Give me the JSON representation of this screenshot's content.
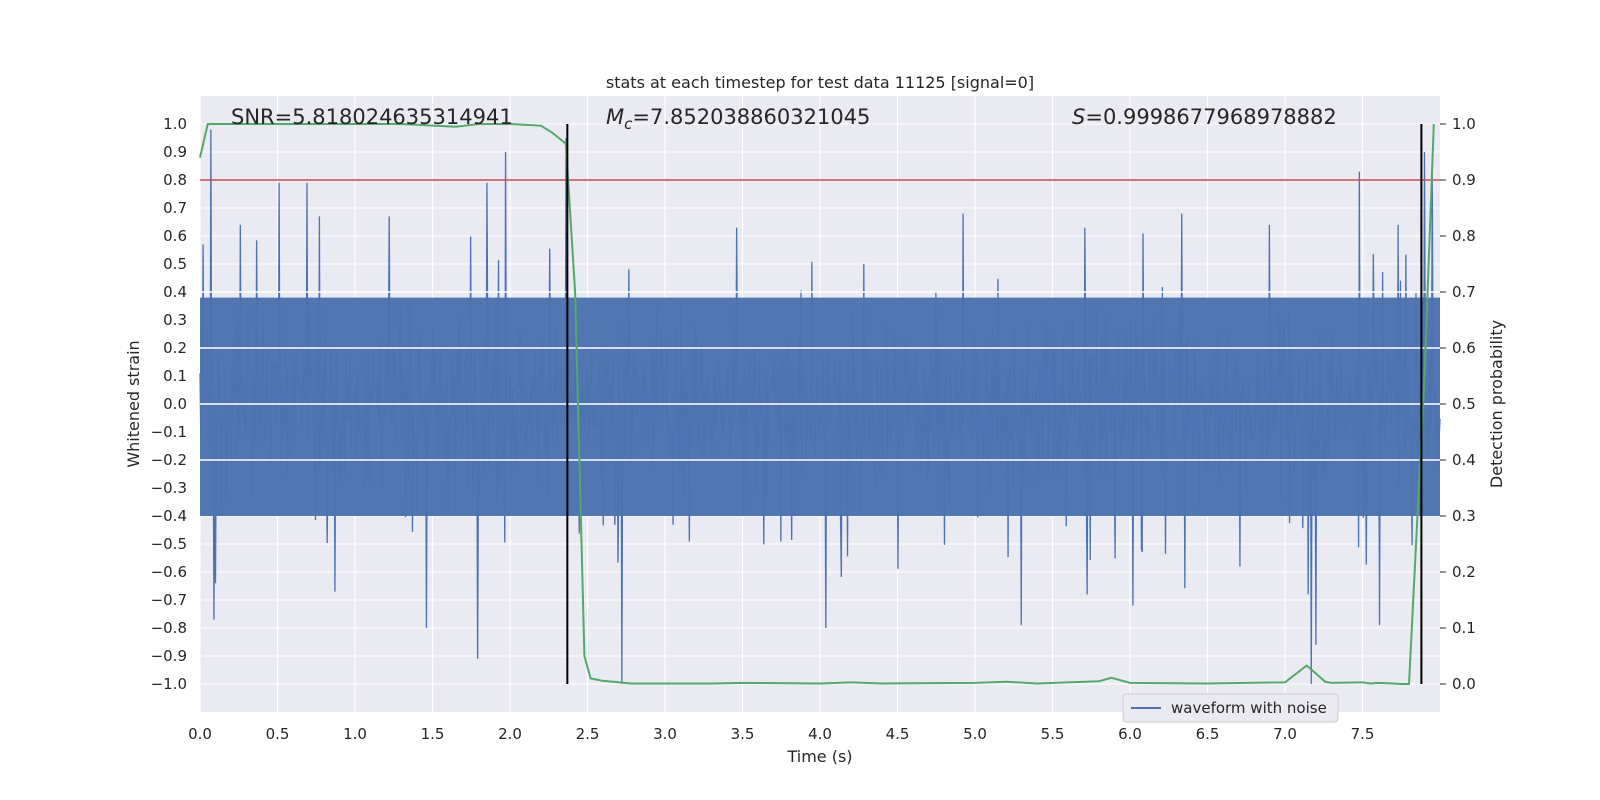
{
  "chart_data": {
    "type": "line",
    "title": "stats at each timestep for test data 11125 [signal=0]",
    "xlabel": "Time (s)",
    "ylabel": "Whitened strain",
    "y2label": "Detection probability",
    "xlim": [
      0.0,
      8.0
    ],
    "ylim": [
      -1.1,
      1.1
    ],
    "y2lim": [
      -0.05,
      1.05
    ],
    "xticks": [
      "0.0",
      "0.5",
      "1.0",
      "1.5",
      "2.0",
      "2.5",
      "3.0",
      "3.5",
      "4.0",
      "4.5",
      "5.0",
      "5.5",
      "6.0",
      "6.5",
      "7.0",
      "7.5"
    ],
    "yticks": [
      "1.0",
      "0.9",
      "0.8",
      "0.7",
      "0.6",
      "0.5",
      "0.4",
      "0.3",
      "0.2",
      "0.1",
      "0.0",
      "−0.1",
      "−0.2",
      "−0.3",
      "−0.4",
      "−0.5",
      "−0.6",
      "−0.7",
      "−0.8",
      "−0.9",
      "−1.0"
    ],
    "y2ticks": [
      "0.0",
      "0.1",
      "0.2",
      "0.3",
      "0.4",
      "0.5",
      "0.6",
      "0.7",
      "0.8",
      "0.9",
      "1.0"
    ],
    "grid": true,
    "annotations": {
      "snr": "SNR=5.818024635314941",
      "mc_symbol": "M",
      "mc_sub": "c",
      "mc_value": "=7.852038860321045",
      "s_symbol": "S",
      "s_value": "=0.9998677968978882"
    },
    "legend": {
      "label": "waveform with noise",
      "placement": "lower-right"
    },
    "threshold": {
      "value": 0.9,
      "axis": "right",
      "color": "#c44e52"
    },
    "vlines": [
      2.37,
      7.88
    ],
    "strain": {
      "name": "waveform with noise",
      "color": "#4c72b0",
      "x_start": 0.0,
      "x_end": 8.0,
      "samples": 1600,
      "noise_sigma": 0.13,
      "spikes": [
        {
          "t": 0.02,
          "v": 0.57
        },
        {
          "t": 0.07,
          "v": 0.98
        },
        {
          "t": 0.1,
          "v": 0.98
        },
        {
          "t": 0.1,
          "v": -0.64
        },
        {
          "t": 0.09,
          "v": -0.77
        },
        {
          "t": 0.26,
          "v": 0.64
        },
        {
          "t": 0.51,
          "v": 0.79
        },
        {
          "t": 0.69,
          "v": 0.79
        },
        {
          "t": 0.87,
          "v": -0.67
        },
        {
          "t": 1.22,
          "v": 0.67
        },
        {
          "t": 1.46,
          "v": -0.8
        },
        {
          "t": 1.79,
          "v": -0.91
        },
        {
          "t": 1.85,
          "v": 0.79
        },
        {
          "t": 1.97,
          "v": 0.9
        },
        {
          "t": 2.36,
          "v": 0.95
        },
        {
          "t": 2.72,
          "v": -1.0
        },
        {
          "t": 3.46,
          "v": 0.63
        },
        {
          "t": 4.04,
          "v": -0.8
        },
        {
          "t": 5.3,
          "v": -0.79
        },
        {
          "t": 6.02,
          "v": -0.72
        },
        {
          "t": 7.17,
          "v": -1.0
        },
        {
          "t": 7.2,
          "v": -0.86
        },
        {
          "t": 7.48,
          "v": 0.83
        },
        {
          "t": 7.61,
          "v": -0.79
        },
        {
          "t": 7.9,
          "v": 0.9
        },
        {
          "t": 7.95,
          "v": 0.86
        },
        {
          "t": 7.73,
          "v": 0.64
        },
        {
          "t": 6.9,
          "v": 0.64
        }
      ]
    },
    "detection_probability": {
      "color": "#55a868",
      "x": [
        0.0,
        0.05,
        0.3,
        0.8,
        1.3,
        1.65,
        1.8,
        2.0,
        2.2,
        2.27,
        2.36,
        2.42,
        2.48,
        2.52,
        2.59,
        2.78,
        3.0,
        3.3,
        3.5,
        4.0,
        4.2,
        4.4,
        5.0,
        5.2,
        5.4,
        5.8,
        5.88,
        6.0,
        6.5,
        7.0,
        7.14,
        7.26,
        7.3,
        7.5,
        7.55,
        7.6,
        7.7,
        7.75,
        7.8,
        7.9,
        7.96
      ],
      "y": [
        0.94,
        1.0,
        1.0,
        1.0,
        1.0,
        0.995,
        1.0,
        1.0,
        0.997,
        0.985,
        0.965,
        0.7,
        0.05,
        0.01,
        0.006,
        0.001,
        0.001,
        0.001,
        0.002,
        0.001,
        0.003,
        0.001,
        0.002,
        0.004,
        0.001,
        0.005,
        0.011,
        0.002,
        0.001,
        0.003,
        0.033,
        0.004,
        0.002,
        0.003,
        0.001,
        0.002,
        0.001,
        0.0,
        0.0,
        0.55,
        1.0
      ]
    }
  }
}
